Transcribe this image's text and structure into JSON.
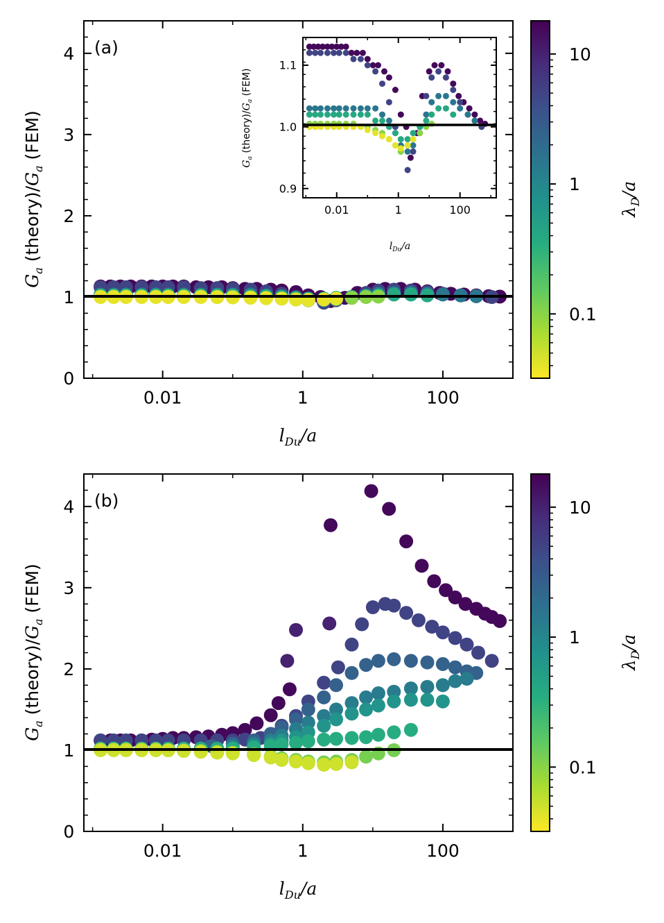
{
  "chart_data": [
    {
      "panel": "(a)",
      "type": "scatter",
      "xscale": "log",
      "xlim": [
        0.00075,
        1000
      ],
      "ylim": [
        0,
        4.4
      ],
      "xticks": [
        0.01,
        1,
        100
      ],
      "xtick_labels": [
        "0.01",
        "1",
        "100"
      ],
      "yticks": [
        0,
        1,
        2,
        3,
        4
      ],
      "ytick_labels": [
        "0",
        "1",
        "2",
        "3",
        "4"
      ],
      "xlabel": "l_Du/a",
      "ylabel": "G_a (theory)/G_a (FEM)",
      "reference_line_y": 1,
      "colorbar": {
        "label": "λ_D/a",
        "scale": "log",
        "colormap": "viridis_r",
        "range": [
          0.032,
          18
        ],
        "ticks": [
          0.1,
          1,
          10
        ],
        "tick_labels": [
          "0.1",
          "1",
          "10"
        ]
      },
      "series": [
        {
          "lambda": 16,
          "x": [
            0.0013,
            0.0018,
            0.0025,
            0.0035,
            0.005,
            0.007,
            0.01,
            0.014,
            0.02,
            0.03,
            0.045,
            0.07,
            0.1,
            0.15,
            0.22,
            0.35,
            0.5,
            0.8,
            1.2,
            1.8,
            2.5,
            4,
            6,
            10,
            15,
            25,
            40,
            60,
            90,
            130,
            200,
            300,
            450,
            650
          ],
          "y": [
            1.13,
            1.13,
            1.13,
            1.13,
            1.13,
            1.13,
            1.13,
            1.13,
            1.13,
            1.12,
            1.12,
            1.12,
            1.11,
            1.1,
            1.1,
            1.09,
            1.08,
            1.06,
            1.02,
            1.0,
            0.95,
            0.99,
            1.05,
            1.09,
            1.1,
            1.1,
            1.09,
            1.07,
            1.05,
            1.04,
            1.03,
            1.02,
            1.01,
            1.005
          ]
        },
        {
          "lambda": 5,
          "x": [
            0.0013,
            0.002,
            0.003,
            0.005,
            0.008,
            0.012,
            0.02,
            0.035,
            0.06,
            0.1,
            0.18,
            0.3,
            0.5,
            0.8,
            1.2,
            2,
            3,
            5,
            8,
            12,
            20,
            35,
            60,
            100,
            180,
            300,
            500
          ],
          "y": [
            1.12,
            1.12,
            1.12,
            1.12,
            1.12,
            1.12,
            1.12,
            1.11,
            1.11,
            1.1,
            1.09,
            1.07,
            1.04,
            1.0,
            0.96,
            0.93,
            0.96,
            1.0,
            1.05,
            1.08,
            1.09,
            1.08,
            1.06,
            1.04,
            1.02,
            1.01,
            1.0
          ]
        },
        {
          "lambda": 1.5,
          "x": [
            0.0013,
            0.002,
            0.003,
            0.005,
            0.008,
            0.012,
            0.02,
            0.035,
            0.06,
            0.1,
            0.18,
            0.3,
            0.5,
            0.8,
            1.2,
            2,
            3,
            5,
            8,
            12,
            20,
            35,
            60,
            100,
            180,
            300
          ],
          "y": [
            1.03,
            1.03,
            1.03,
            1.03,
            1.03,
            1.03,
            1.03,
            1.03,
            1.03,
            1.03,
            1.03,
            1.02,
            1.01,
            0.99,
            0.97,
            0.96,
            0.97,
            0.99,
            1.02,
            1.04,
            1.05,
            1.05,
            1.04,
            1.03,
            1.02,
            1.01
          ]
        },
        {
          "lambda": 0.4,
          "x": [
            0.0013,
            0.002,
            0.003,
            0.005,
            0.008,
            0.012,
            0.02,
            0.035,
            0.06,
            0.1,
            0.18,
            0.3,
            0.5,
            0.8,
            1.2,
            2,
            3,
            5,
            8,
            12,
            20,
            35,
            60
          ],
          "y": [
            1.02,
            1.02,
            1.02,
            1.02,
            1.02,
            1.02,
            1.02,
            1.02,
            1.02,
            1.02,
            1.01,
            1.01,
            1.0,
            0.99,
            0.98,
            0.98,
            0.99,
            1.0,
            1.01,
            1.02,
            1.03,
            1.03,
            1.02
          ]
        },
        {
          "lambda": 0.1,
          "x": [
            0.0013,
            0.002,
            0.003,
            0.005,
            0.008,
            0.012,
            0.02,
            0.035,
            0.06,
            0.1,
            0.18,
            0.3,
            0.5,
            0.8,
            1.2,
            2,
            3,
            5,
            8,
            12
          ],
          "y": [
            1.005,
            1.005,
            1.005,
            1.005,
            1.005,
            1.005,
            1.005,
            1.005,
            1.0,
            1.0,
            0.995,
            0.99,
            0.98,
            0.97,
            0.96,
            0.97,
            0.98,
            0.99,
            1.0,
            1.005
          ]
        },
        {
          "lambda": 0.04,
          "x": [
            0.0013,
            0.002,
            0.003,
            0.005,
            0.008,
            0.012,
            0.02,
            0.035,
            0.06,
            0.1,
            0.18,
            0.3,
            0.5,
            0.8,
            1.2,
            2,
            3
          ],
          "y": [
            1.0,
            1.0,
            1.0,
            1.0,
            1.0,
            1.0,
            1.0,
            1.0,
            1.0,
            0.995,
            0.99,
            0.985,
            0.98,
            0.97,
            0.965,
            0.97,
            0.98
          ]
        }
      ],
      "inset": {
        "xscale": "log",
        "xlim": [
          0.0008,
          1500
        ],
        "ylim": [
          0.885,
          1.145
        ],
        "xticks": [
          0.01,
          1,
          100
        ],
        "xtick_labels": [
          "0.01",
          "1",
          "100"
        ],
        "yticks": [
          0.9,
          1.0,
          1.1
        ],
        "ytick_labels": [
          "0.9",
          "1.0",
          "1.1"
        ],
        "xlabel": "l_Du/a",
        "ylabel": "G_a (theory)/G_a (FEM)",
        "reference_line_y": 1
      }
    },
    {
      "panel": "(b)",
      "type": "scatter",
      "xscale": "log",
      "xlim": [
        0.00075,
        1000
      ],
      "ylim": [
        0,
        4.4
      ],
      "xticks": [
        0.01,
        1,
        100
      ],
      "xtick_labels": [
        "0.01",
        "1",
        "100"
      ],
      "yticks": [
        0,
        1,
        2,
        3,
        4
      ],
      "ytick_labels": [
        "0",
        "1",
        "2",
        "3",
        "4"
      ],
      "xlabel": "l_Du/a",
      "ylabel": "G_a (theory)/G_a (FEM)",
      "reference_line_y": 1,
      "colorbar": {
        "label": "λ_D/a",
        "scale": "log",
        "colormap": "viridis_r",
        "range": [
          0.032,
          18
        ],
        "ticks": [
          0.1,
          1,
          10
        ],
        "tick_labels": [
          "0.1",
          "1",
          "10"
        ]
      },
      "series": [
        {
          "lambda": 16,
          "x": [
            0.0013,
            0.0018,
            0.0025,
            0.0035,
            0.005,
            0.007,
            0.01,
            0.014,
            0.02,
            0.03,
            0.045,
            0.07,
            0.1,
            0.15,
            0.22,
            0.35,
            0.45,
            0.65,
            2.5,
            9.5,
            17,
            30,
            50,
            75,
            110,
            150,
            210,
            300,
            400,
            500,
            650
          ],
          "y": [
            1.12,
            1.12,
            1.12,
            1.12,
            1.12,
            1.13,
            1.14,
            1.15,
            1.15,
            1.16,
            1.17,
            1.19,
            1.21,
            1.25,
            1.33,
            1.43,
            1.58,
            1.75,
            3.77,
            4.19,
            3.97,
            3.57,
            3.27,
            3.08,
            2.97,
            2.88,
            2.8,
            2.74,
            2.68,
            2.64,
            2.59
          ]
        },
        {
          "lambda": 10,
          "x": [
            0.6,
            0.8,
            2.4
          ],
          "y": [
            2.1,
            2.48,
            2.56
          ]
        },
        {
          "lambda": 5,
          "x": [
            0.0013,
            0.002,
            0.003,
            0.005,
            0.008,
            0.012,
            0.02,
            0.035,
            0.06,
            0.1,
            0.15,
            0.25,
            0.35,
            0.5,
            0.8,
            1.2,
            2,
            3.2,
            5,
            7,
            10,
            15,
            20,
            30,
            45,
            70,
            100,
            150,
            220,
            320,
            500
          ],
          "y": [
            1.12,
            1.12,
            1.12,
            1.12,
            1.12,
            1.12,
            1.12,
            1.12,
            1.12,
            1.12,
            1.13,
            1.15,
            1.2,
            1.3,
            1.42,
            1.6,
            1.83,
            2.02,
            2.3,
            2.55,
            2.76,
            2.8,
            2.78,
            2.69,
            2.6,
            2.52,
            2.45,
            2.38,
            2.3,
            2.2,
            2.1
          ]
        },
        {
          "lambda": 2.5,
          "x": [
            0.05,
            0.1,
            0.2,
            0.35,
            0.5,
            0.8,
            1.2,
            2,
            3,
            5,
            8,
            12,
            20,
            35,
            60,
            100,
            150,
            220,
            300
          ],
          "y": [
            1.05,
            1.08,
            1.12,
            1.2,
            1.28,
            1.38,
            1.5,
            1.65,
            1.8,
            1.95,
            2.05,
            2.1,
            2.12,
            2.1,
            2.08,
            2.06,
            2.02,
            1.97,
            1.95
          ]
        },
        {
          "lambda": 1.3,
          "x": [
            0.1,
            0.2,
            0.35,
            0.5,
            0.8,
            1.2,
            2,
            3,
            5,
            8,
            12,
            20,
            35,
            60,
            100,
            150,
            220
          ],
          "y": [
            1.05,
            1.08,
            1.12,
            1.18,
            1.26,
            1.34,
            1.42,
            1.5,
            1.58,
            1.65,
            1.7,
            1.72,
            1.76,
            1.78,
            1.8,
            1.85,
            1.88
          ]
        },
        {
          "lambda": 0.7,
          "x": [
            0.2,
            0.35,
            0.5,
            0.8,
            1.2,
            2,
            3,
            5,
            8,
            12,
            20,
            35,
            60,
            100
          ],
          "y": [
            1.05,
            1.08,
            1.12,
            1.16,
            1.22,
            1.3,
            1.38,
            1.45,
            1.5,
            1.55,
            1.6,
            1.62,
            1.62,
            1.6
          ]
        },
        {
          "lambda": 0.35,
          "x": [
            0.0013,
            0.002,
            0.003,
            0.005,
            0.008,
            0.012,
            0.02,
            0.035,
            0.06,
            0.1,
            0.2,
            0.35,
            0.5,
            0.8,
            1.2,
            2,
            3,
            5,
            8,
            12,
            20,
            35
          ],
          "y": [
            1.02,
            1.02,
            1.02,
            1.02,
            1.02,
            1.02,
            1.02,
            1.02,
            1.02,
            1.02,
            1.03,
            1.05,
            1.07,
            1.09,
            1.11,
            1.13,
            1.14,
            1.15,
            1.16,
            1.19,
            1.22,
            1.25
          ]
        },
        {
          "lambda": 0.12,
          "x": [
            0.0013,
            0.002,
            0.003,
            0.005,
            0.008,
            0.012,
            0.02,
            0.035,
            0.06,
            0.1,
            0.2,
            0.35,
            0.5,
            0.8,
            1.2,
            2,
            3,
            5,
            8,
            12,
            20
          ],
          "y": [
            1.01,
            1.01,
            1.01,
            1.01,
            1.01,
            1.0,
            1.0,
            0.99,
            0.98,
            0.97,
            0.95,
            0.92,
            0.9,
            0.88,
            0.86,
            0.85,
            0.86,
            0.88,
            0.92,
            0.96,
            1.0
          ]
        },
        {
          "lambda": 0.05,
          "x": [
            0.0013,
            0.002,
            0.003,
            0.005,
            0.008,
            0.012,
            0.02,
            0.035,
            0.06,
            0.1,
            0.2,
            0.35,
            0.5,
            0.8,
            1.2,
            2,
            3,
            5
          ],
          "y": [
            1.0,
            1.0,
            1.0,
            1.0,
            1.0,
            1.0,
            0.99,
            0.98,
            0.97,
            0.96,
            0.94,
            0.91,
            0.88,
            0.86,
            0.84,
            0.82,
            0.83,
            0.85
          ]
        }
      ]
    }
  ],
  "labels": {
    "panel_a": "(a)",
    "panel_b": "(b)",
    "ylabel_G": "G",
    "ylabel_sub": "a",
    "ylabel_mid": " (theory)/",
    "ylabel_end": " (FEM)",
    "xlabel_l": "l",
    "xlabel_sub": "Du",
    "xlabel_end": "/a",
    "cbar_lambda": "λ",
    "cbar_sub": "D",
    "cbar_end": "/a"
  },
  "colors": {
    "reference_line": "#000000",
    "axes": "#000000",
    "background": "#ffffff"
  }
}
